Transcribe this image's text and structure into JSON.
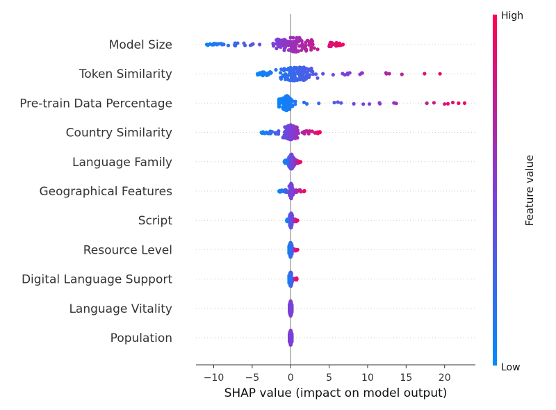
{
  "chart_data": {
    "type": "scatter",
    "subtype": "shap-beeswarm",
    "title": "",
    "xlabel": "SHAP value (impact on model output)",
    "ylabel": "",
    "xlim": [
      -12.3,
      24.0
    ],
    "xticks": [
      -10,
      -5,
      0,
      5,
      10,
      15,
      20
    ],
    "xtick_labels": [
      "−10",
      "−5",
      "0",
      "5",
      "10",
      "15",
      "20"
    ],
    "grid": false,
    "colorbar": {
      "title": "Feature value",
      "high_label": "High",
      "low_label": "Low",
      "low_color": "#008bfb",
      "mid_color": "#7c3fd8",
      "high_color": "#ff0052"
    },
    "features": [
      {
        "name": "Model Size",
        "shap_min": -10.9,
        "shap_max": 6.8,
        "core_range": [
          -4,
          5
        ],
        "neg_color": "low",
        "pos_color": "high"
      },
      {
        "name": "Token Similarity",
        "shap_min": -4.3,
        "shap_max": 19.4,
        "core_range": [
          -2.5,
          4
        ],
        "neg_color": "low",
        "pos_color": "high"
      },
      {
        "name": "Pre-train Data Percentage",
        "shap_min": -1.5,
        "shap_max": 22.6,
        "core_range": [
          -1.5,
          0.5
        ],
        "neg_color": "low",
        "pos_color": "high"
      },
      {
        "name": "Country Similarity",
        "shap_min": -3.8,
        "shap_max": 3.8,
        "core_range": [
          -1.5,
          1.5
        ],
        "neg_color": "low",
        "pos_color": "high"
      },
      {
        "name": "Language Family",
        "shap_min": -0.8,
        "shap_max": 1.3,
        "core_range": [
          -0.4,
          0.6
        ],
        "neg_color": "low",
        "pos_color": "high"
      },
      {
        "name": "Geographical Features",
        "shap_min": -1.5,
        "shap_max": 1.8,
        "core_range": [
          -0.3,
          0.4
        ],
        "neg_color": "low",
        "pos_color": "high"
      },
      {
        "name": "Script",
        "shap_min": -0.5,
        "shap_max": 0.9,
        "core_range": [
          -0.2,
          0.3
        ],
        "neg_color": "low",
        "pos_color": "high"
      },
      {
        "name": "Resource Level",
        "shap_min": -0.2,
        "shap_max": 0.9,
        "core_range": [
          -0.2,
          0.2
        ],
        "neg_color": "low",
        "pos_color": "high"
      },
      {
        "name": "Digital Language Support",
        "shap_min": -0.2,
        "shap_max": 0.8,
        "core_range": [
          -0.2,
          0.2
        ],
        "neg_color": "low",
        "pos_color": "high"
      },
      {
        "name": "Language Vitality",
        "shap_min": -0.15,
        "shap_max": 0.15,
        "core_range": [
          -0.15,
          0.15
        ],
        "neg_color": "mid",
        "pos_color": "mid"
      },
      {
        "name": "Population",
        "shap_min": -0.15,
        "shap_max": 0.15,
        "core_range": [
          -0.15,
          0.15
        ],
        "neg_color": "mid",
        "pos_color": "mid"
      }
    ]
  }
}
